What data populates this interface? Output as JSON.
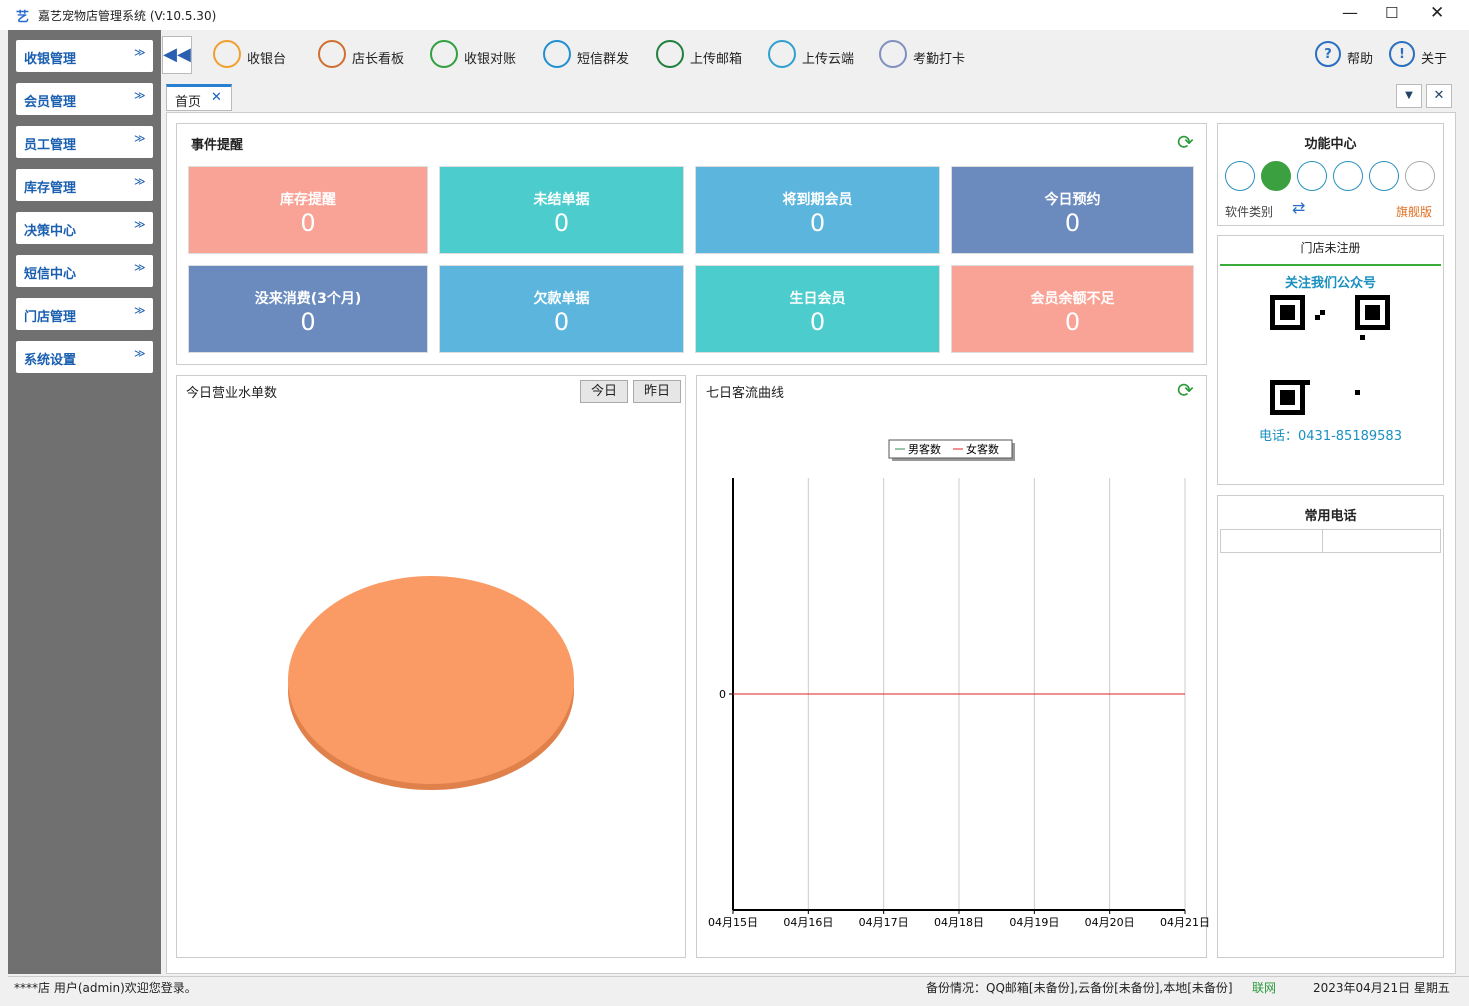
{
  "window": {
    "title": "嘉艺宠物店管理系统 (V:10.5.30)"
  },
  "sidebar": [
    "收银管理",
    "会员管理",
    "员工管理",
    "库存管理",
    "决策中心",
    "短信中心",
    "门店管理",
    "系统设置"
  ],
  "toolbar": [
    {
      "label": "收银台",
      "color": "#f0a030"
    },
    {
      "label": "店长看板",
      "color": "#d07030"
    },
    {
      "label": "收银对账",
      "color": "#30a040"
    },
    {
      "label": "短信群发",
      "color": "#2090d0"
    },
    {
      "label": "上传邮箱",
      "color": "#208040"
    },
    {
      "label": "上传云端",
      "color": "#30a0d0"
    },
    {
      "label": "考勤打卡",
      "color": "#8090c0"
    }
  ],
  "toolbar_right": [
    "帮助",
    "关于"
  ],
  "tab": "首页",
  "events": {
    "title": "事件提醒",
    "cards": [
      {
        "label": "库存提醒",
        "value": 0,
        "color": "#f9a396"
      },
      {
        "label": "未结单据",
        "value": 0,
        "color": "#4ccccc"
      },
      {
        "label": "将到期会员",
        "value": 0,
        "color": "#5bb5dd"
      },
      {
        "label": "今日预约",
        "value": 0,
        "color": "#6b8bbf"
      },
      {
        "label": "没来消费(3个月)",
        "value": 0,
        "color": "#6b8bbf"
      },
      {
        "label": "欠款单据",
        "value": 0,
        "color": "#5bb5dd"
      },
      {
        "label": "生日会员",
        "value": 0,
        "color": "#4ccccc"
      },
      {
        "label": "会员余额不足",
        "value": 0,
        "color": "#f9a396"
      }
    ]
  },
  "pie_panel": {
    "title": "今日营业水单数",
    "buttons": [
      "今日",
      "昨日"
    ]
  },
  "line_chart": {
    "type": "line",
    "title": "七日客流曲线",
    "categories": [
      "04月15日",
      "04月16日",
      "04月17日",
      "04月18日",
      "04月19日",
      "04月20日",
      "04月21日"
    ],
    "series": [
      {
        "name": "男客数",
        "color": "#2e8b57",
        "values": [
          0,
          0,
          0,
          0,
          0,
          0,
          0
        ]
      },
      {
        "name": "女客数",
        "color": "#e02020",
        "values": [
          0,
          0,
          0,
          0,
          0,
          0,
          0
        ]
      }
    ],
    "ylim": [
      -1,
      1
    ],
    "yticks": [
      0
    ],
    "grid": true
  },
  "function_center": {
    "title": "功能中心",
    "category_label": "软件类别",
    "edition": "旗舰版"
  },
  "store": {
    "status": "门店未注册",
    "follow": "关注我们公众号",
    "phone": "电话：0431-85189583"
  },
  "phones": {
    "title": "常用电话"
  },
  "status_bar": {
    "welcome": "****店 用户(admin)欢迎您登录。",
    "backup": "备份情况：QQ邮箱[未备份],云备份[未备份],本地[未备份]",
    "network": "联网",
    "datetime": "2023年04月21日 星期五"
  }
}
